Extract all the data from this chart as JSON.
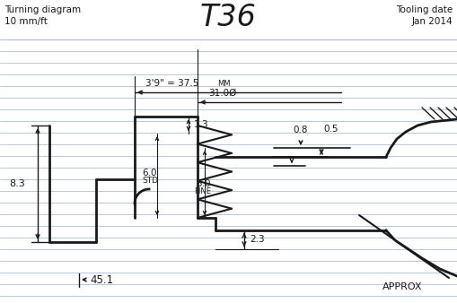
{
  "title": "T36",
  "top_left_text1": "Turning diagram",
  "top_left_text2": "10 mm/ft",
  "top_right_text1": "Tooling date",
  "top_right_text2": "Jan 2014",
  "bottom_left_text": "45.1",
  "bottom_right_text": "APPROX",
  "bg_color": "#ffffff",
  "line_color": "#1a1a1a",
  "bg_line_color": "#aabfd4",
  "ruled_lines_y": [
    44,
    57,
    70,
    83,
    96,
    109,
    122,
    135,
    148,
    161,
    174,
    187,
    200,
    213,
    226,
    239,
    252,
    265,
    278,
    291,
    304,
    317,
    330
  ]
}
